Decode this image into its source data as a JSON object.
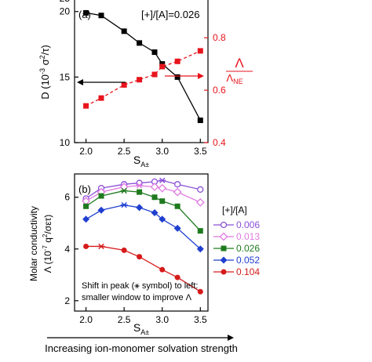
{
  "chart_data": [
    {
      "panel_label": "(a)",
      "type": "line",
      "annotation": "[+]/[A]=0.026",
      "xlabel_main": "S",
      "xlabel_sub": "A±",
      "ylabel": "D (10",
      "ylabel_exp": "-3",
      "ylabel_mid": " σ",
      "ylabel_exp2": "2",
      "ylabel_end": "/τ)",
      "y2label_num": "Λ",
      "y2label_den": "Λ",
      "y2label_den_sub": "NE",
      "xlim": [
        1.85,
        3.6
      ],
      "ylim": [
        10,
        21
      ],
      "y2lim": [
        0.4,
        0.95
      ],
      "xticks": [
        "2.0",
        "2.5",
        "3.0",
        "3.5"
      ],
      "yticks": [
        "10",
        "15",
        "20"
      ],
      "y2ticks": [
        "0.4",
        "0.6",
        "0.8"
      ],
      "colors": {
        "black": "#000000",
        "red": "#e8141c"
      },
      "series": [
        {
          "axis": "left",
          "color": "#000000",
          "style": "solid",
          "marker": "square",
          "x": [
            2.0,
            2.2,
            2.5,
            2.7,
            2.9,
            3.0,
            3.2,
            3.5
          ],
          "y": [
            19.9,
            19.7,
            18.5,
            17.6,
            16.9,
            16.0,
            15.0,
            11.7
          ]
        },
        {
          "axis": "right",
          "color": "#e8141c",
          "style": "dashed",
          "marker": "square",
          "x": [
            2.0,
            2.2,
            2.5,
            2.7,
            2.9,
            3.0,
            3.2,
            3.5
          ],
          "y": [
            0.54,
            0.57,
            0.62,
            0.64,
            0.66,
            0.69,
            0.71,
            0.75
          ]
        }
      ]
    },
    {
      "panel_label": "(b)",
      "type": "line",
      "xlabel_main": "S",
      "xlabel_sub": "A±",
      "ylabel_line1": "Molar conductivity",
      "ylabel_line2": "Λ (10",
      "ylabel_exp": "-7",
      "ylabel_mid": " q",
      "ylabel_exp2": "2",
      "ylabel_end": "/σετ)",
      "xlim": [
        1.85,
        3.6
      ],
      "ylim": [
        1.6,
        6.9
      ],
      "xticks": [
        "2.0",
        "2.5",
        "3.0",
        "3.5"
      ],
      "yticks": [
        "2",
        "4",
        "6"
      ],
      "legend_title": "[+]/[A]",
      "note_line1": "Shift in peak (⚹ symbol) to left:",
      "note_line2": "smaller window to improve Λ",
      "series": [
        {
          "name": "0.006",
          "color": "#8a4fd8",
          "marker": "circle-open",
          "peak_index": 5,
          "x": [
            2.0,
            2.2,
            2.5,
            2.7,
            2.9,
            3.0,
            3.2,
            3.5
          ],
          "y": [
            5.95,
            6.35,
            6.5,
            6.55,
            6.6,
            6.65,
            6.5,
            6.3
          ]
        },
        {
          "name": "0.013",
          "color": "#e07ae0",
          "marker": "diamond-open",
          "peak_index": 3,
          "x": [
            2.0,
            2.2,
            2.5,
            2.7,
            2.9,
            3.0,
            3.2,
            3.5
          ],
          "y": [
            5.85,
            6.2,
            6.4,
            6.45,
            6.4,
            6.35,
            6.2,
            5.8
          ]
        },
        {
          "name": "0.026",
          "color": "#1e7a1e",
          "marker": "square",
          "peak_index": 2,
          "x": [
            2.0,
            2.2,
            2.5,
            2.7,
            2.9,
            3.0,
            3.2,
            3.5
          ],
          "y": [
            5.65,
            6.05,
            6.25,
            6.2,
            6.0,
            5.85,
            5.65,
            4.7
          ]
        },
        {
          "name": "0.052",
          "color": "#1f3fd0",
          "marker": "diamond",
          "peak_index": 2,
          "x": [
            2.0,
            2.2,
            2.5,
            2.7,
            2.9,
            3.0,
            3.2,
            3.5
          ],
          "y": [
            5.15,
            5.5,
            5.7,
            5.6,
            5.4,
            5.15,
            4.8,
            4.0
          ]
        },
        {
          "name": "0.104",
          "color": "#d61a1a",
          "marker": "circle",
          "peak_index": 1,
          "x": [
            2.0,
            2.2,
            2.5,
            2.7,
            3.0,
            3.2,
            3.5
          ],
          "y": [
            4.1,
            4.1,
            3.95,
            3.7,
            3.2,
            2.9,
            2.35
          ]
        }
      ]
    }
  ],
  "footer": "Increasing ion-monomer solvation strength"
}
